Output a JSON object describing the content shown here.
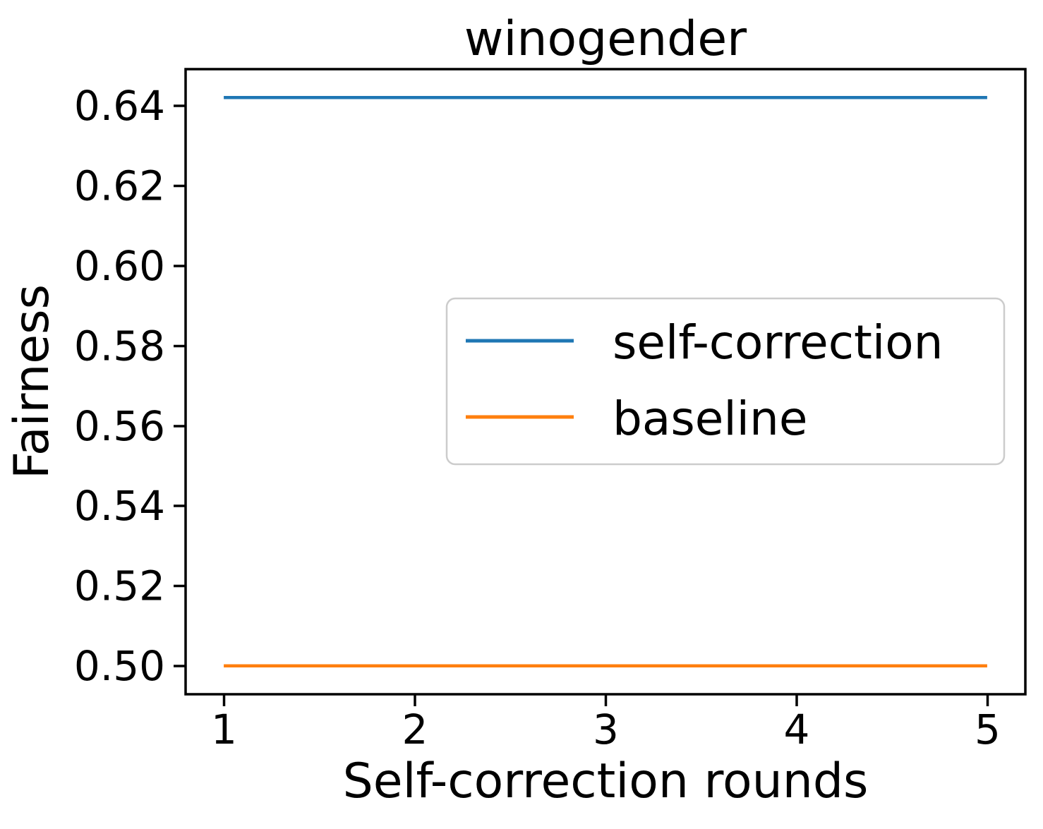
{
  "chart_data": {
    "type": "line",
    "title": "winogender",
    "xlabel": "Self-correction rounds",
    "ylabel": "Fairness",
    "x": [
      1,
      2,
      3,
      4,
      5
    ],
    "series": [
      {
        "name": "self-correction",
        "color": "#1f77b4",
        "values": [
          0.642,
          0.642,
          0.642,
          0.642,
          0.642
        ]
      },
      {
        "name": "baseline",
        "color": "#ff7f0e",
        "values": [
          0.5,
          0.5,
          0.5,
          0.5,
          0.5
        ]
      }
    ],
    "xlim": [
      0.8,
      5.2
    ],
    "ylim": [
      0.4929,
      0.6491
    ],
    "xticks": [
      "1",
      "2",
      "3",
      "4",
      "5"
    ],
    "yticks": [
      "0.50",
      "0.52",
      "0.54",
      "0.56",
      "0.58",
      "0.60",
      "0.62",
      "0.64"
    ],
    "grid": false,
    "legend": {
      "position": "center",
      "entries": [
        "self-correction",
        "baseline"
      ],
      "edge_color": "#cccccc",
      "face_color": "rgba(255,255,255,0.8)"
    },
    "colors": {
      "spine": "#000000",
      "text": "#000000",
      "background": "#ffffff"
    }
  }
}
